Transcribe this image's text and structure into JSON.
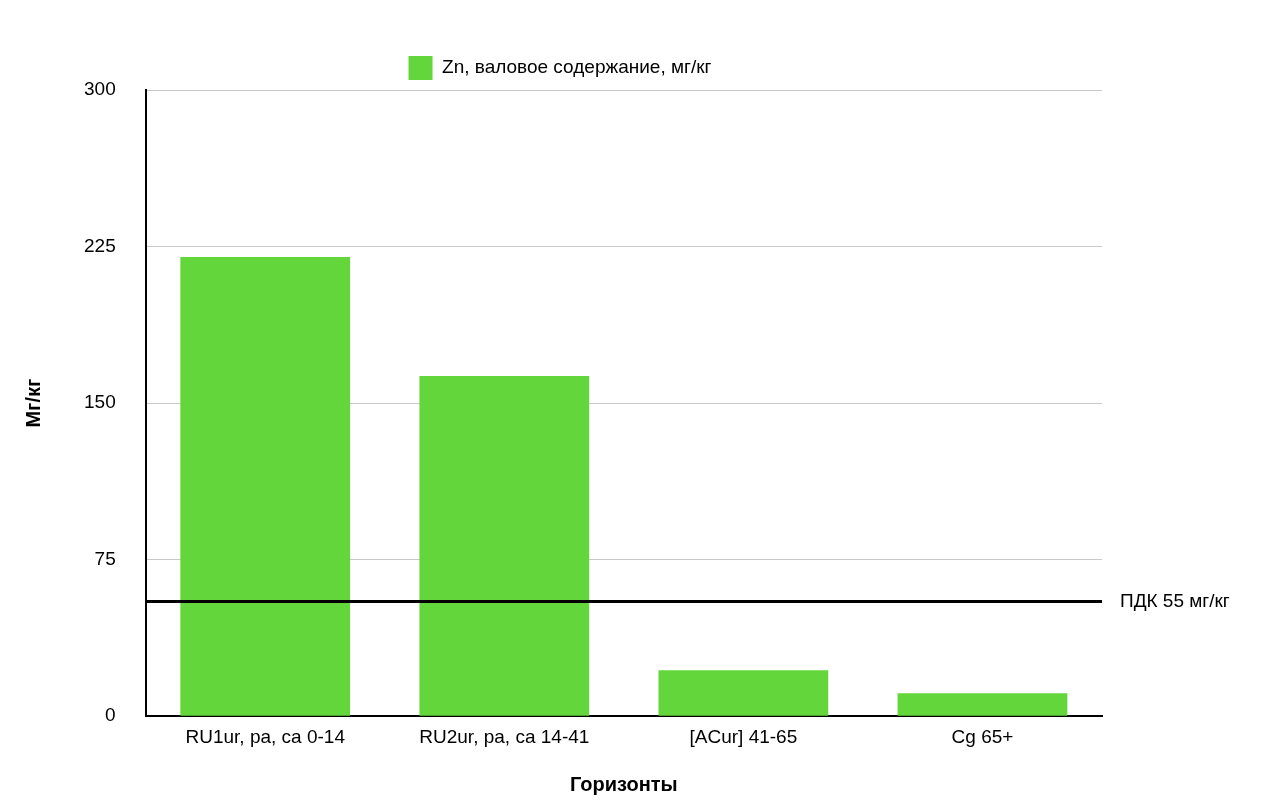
{
  "chart_data": {
    "type": "bar",
    "xlabel": "Горизонты",
    "ylabel": "Мг/кг",
    "categories": [
      "RU1ur, pa, ca 0-14",
      "RU2ur, pa, ca 14-41",
      "[ACur] 41-65",
      "Cg 65+"
    ],
    "series": [
      {
        "name": "Zn, валовое содержание, мг/кг",
        "color": "#62d63a",
        "values": [
          220,
          163,
          22,
          11
        ]
      }
    ],
    "ylim": [
      0,
      300
    ],
    "yticks": [
      0,
      75,
      150,
      225,
      300
    ],
    "grid": "y",
    "legend": "top",
    "ref_lines": [
      {
        "axis": "y",
        "value": 55,
        "label": "ПДК 55 мг/кг",
        "color": "#000000"
      }
    ]
  }
}
